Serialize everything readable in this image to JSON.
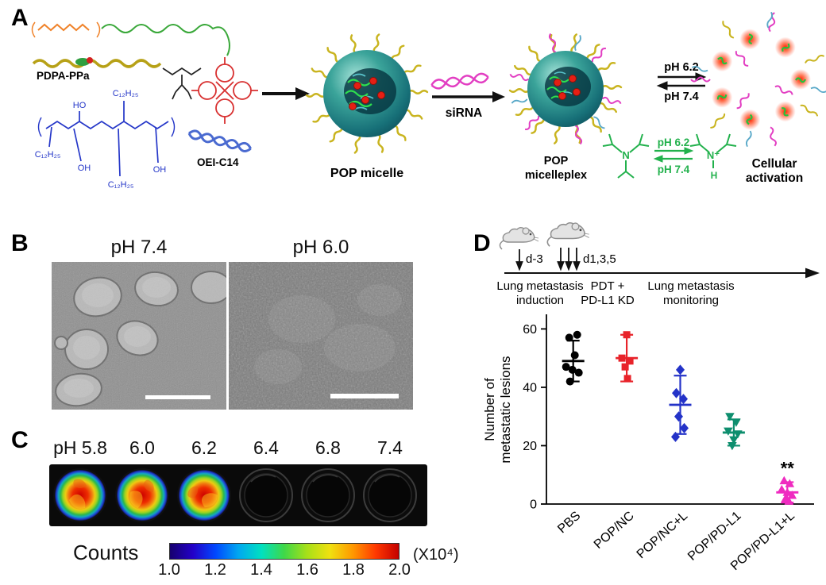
{
  "figure": {
    "panel_labels": {
      "A": "A",
      "B": "B",
      "C": "C",
      "D": "D"
    }
  },
  "panel_a": {
    "pdpa_ppa": "PDPA-PPa",
    "oei_c14": "OEI-C14",
    "c12h25_top": "C₁₂H₂₅",
    "c12h25_left": "C₁₂H₂₅",
    "c12h25_bottom": "C₁₂H₂₅",
    "ho": "HO",
    "oh_left": "OH",
    "oh_bottom": "OH",
    "pop_micelle": "POP micelle",
    "sirna": "siRNA",
    "pop_micelleplex_line1": "POP",
    "pop_micelleplex_line2": "micelleplex",
    "ph_up": "pH 6.2",
    "ph_down": "pH 7.4",
    "green_ph_up": "pH 6.2",
    "green_ph_down": "pH 7.4",
    "green_left_n": "N",
    "green_right_n": "N⁺",
    "green_right_h": "H",
    "cellular_line1": "Cellular",
    "cellular_line2": "activation"
  },
  "panel_b": {
    "left_title": "pH 7.4",
    "right_title": "pH 6.0"
  },
  "panel_c": {
    "ph_labels": [
      "pH 5.8",
      "6.0",
      "6.2",
      "6.4",
      "6.8",
      "7.4"
    ],
    "counts": "Counts",
    "scale_ticks": [
      "1.0",
      "1.2",
      "1.4",
      "1.6",
      "1.8",
      "2.0"
    ],
    "scale_unit": "(X10⁴)"
  },
  "panel_d": {
    "day_minus3": "d-3",
    "day_135": "d1,3,5",
    "phase1_line1": "Lung metastasis",
    "phase1_line2": "induction",
    "phase2_line1": "PDT +",
    "phase2_line2": "PD-L1 KD",
    "phase3_line1": "Lung metastasis",
    "phase3_line2": "monitoring",
    "ylabel_line1": "Number of",
    "ylabel_line2": "metastatic lesions"
  },
  "colors": {
    "micelle_teal": "#1b7f82",
    "corona_yellow": "#c9b41f",
    "sirna_magenta": "#e23ec2",
    "chem_green": "#22b14c",
    "chem_blue": "#2436c8",
    "chem_red": "#d83030",
    "chem_orange": "#f08229"
  },
  "chart_data": {
    "type": "scatter",
    "title": "",
    "xlabel": "",
    "ylabel": "Number of metastatic lesions",
    "ylim": [
      0,
      65
    ],
    "yticks": [
      0,
      20,
      40,
      60
    ],
    "legend": "none",
    "grid": false,
    "categories": [
      "PBS",
      "POP/NC",
      "POP/NC+L",
      "POP/PD-L1",
      "POP/PD-L1+L"
    ],
    "series": [
      {
        "name": "PBS",
        "marker": "circle",
        "color": "#000000",
        "mean": 49,
        "sd": 7,
        "points": [
          [
            -5,
            57
          ],
          [
            5,
            58
          ],
          [
            2,
            51
          ],
          [
            -9,
            47
          ],
          [
            -1,
            46
          ],
          [
            7,
            45
          ],
          [
            -4,
            42
          ]
        ]
      },
      {
        "name": "POP/NC",
        "marker": "square",
        "color": "#e8232a",
        "mean": 50,
        "sd": 8,
        "points": [
          [
            0,
            58
          ],
          [
            -6,
            50
          ],
          [
            4,
            49
          ],
          [
            -2,
            47
          ],
          [
            1,
            43
          ]
        ]
      },
      {
        "name": "POP/NC+L",
        "marker": "diamond",
        "color": "#2433c8",
        "mean": 34,
        "sd": 10,
        "points": [
          [
            0,
            46
          ],
          [
            -5,
            38
          ],
          [
            4,
            36
          ],
          [
            -2,
            30
          ],
          [
            5,
            26
          ],
          [
            -6,
            23
          ]
        ]
      },
      {
        "name": "POP/PD-L1",
        "marker": "triangle-down",
        "color": "#0e8e6e",
        "mean": 24.5,
        "sd": 4.5,
        "points": [
          [
            -5,
            30
          ],
          [
            3,
            28
          ],
          [
            -7,
            25
          ],
          [
            5,
            24
          ],
          [
            0,
            22
          ],
          [
            -2,
            20
          ]
        ]
      },
      {
        "name": "POP/PD-L1+L",
        "marker": "triangle-up",
        "color": "#ef2bc0",
        "mean": 4,
        "sd": 3.5,
        "points": [
          [
            -4,
            8
          ],
          [
            3,
            7
          ],
          [
            -7,
            5
          ],
          [
            0,
            4
          ],
          [
            6,
            3
          ],
          [
            -2,
            2
          ],
          [
            2,
            1
          ]
        ],
        "annotation": "**"
      }
    ]
  }
}
